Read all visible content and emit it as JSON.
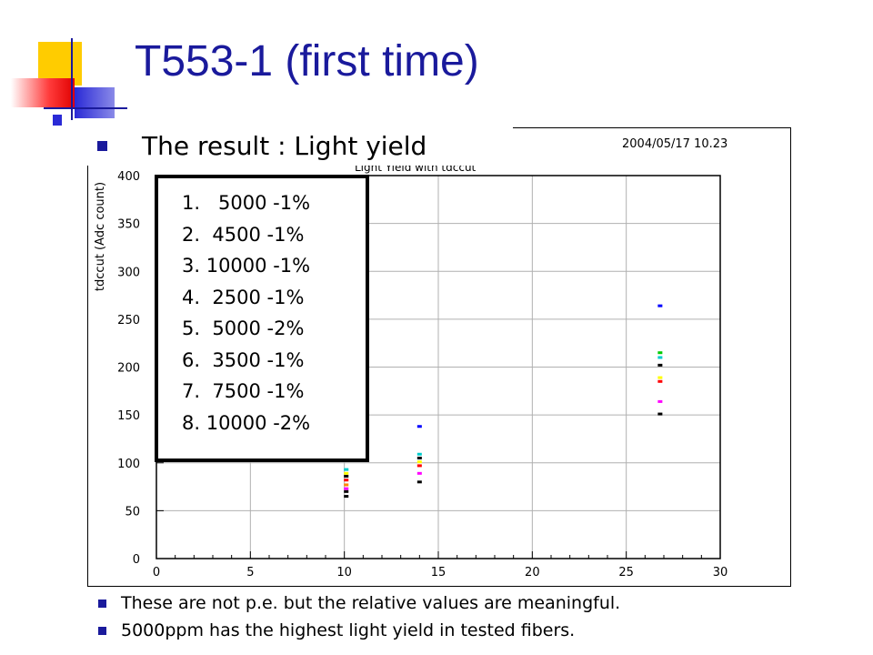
{
  "slide": {
    "title": "T553-1 (first time)",
    "heading": "The result : Light yield",
    "accent_color": "#1a1a9c",
    "notes": [
      "These are not p.e. but the relative values are meaningful.",
      "5000ppm has the highest light yield in tested fibers."
    ]
  },
  "plot": {
    "date_stamp": "2004/05/17   10.23",
    "partial_title": "Light Yield  with tdccut"
  },
  "legend": {
    "items": [
      "1.   5000 -1%",
      "2.  4500 -1%",
      "3. 10000 -1%",
      "4.  2500 -1%",
      "5.  5000 -2%",
      "6.  3500 -1%",
      "7.  7500 -1%",
      "8. 10000 -2%"
    ]
  },
  "chart_data": {
    "type": "scatter",
    "ylabel": "tdccut (Adc count)",
    "xlabel": "",
    "xlim": [
      0,
      30
    ],
    "ylim": [
      0,
      400
    ],
    "x_ticks": [
      0,
      5,
      10,
      15,
      20,
      25,
      30
    ],
    "y_ticks": [
      0,
      50,
      100,
      150,
      200,
      250,
      300,
      350,
      400
    ],
    "grid": true,
    "points": [
      {
        "x": 10.1,
        "y": 93,
        "color": "#00cccc"
      },
      {
        "x": 10.1,
        "y": 89,
        "color": "#ffff00"
      },
      {
        "x": 10.1,
        "y": 86,
        "color": "#000000"
      },
      {
        "x": 10.1,
        "y": 82,
        "color": "#ff0000"
      },
      {
        "x": 10.1,
        "y": 77,
        "color": "#ff8800"
      },
      {
        "x": 10.1,
        "y": 73,
        "color": "#ff00ff"
      },
      {
        "x": 10.1,
        "y": 70,
        "color": "#000000"
      },
      {
        "x": 10.1,
        "y": 65,
        "color": "#000000"
      },
      {
        "x": 14.0,
        "y": 138,
        "color": "#0000ff"
      },
      {
        "x": 14.0,
        "y": 109,
        "color": "#00cccc"
      },
      {
        "x": 14.0,
        "y": 105,
        "color": "#000000"
      },
      {
        "x": 14.0,
        "y": 101,
        "color": "#ffff00"
      },
      {
        "x": 14.0,
        "y": 97,
        "color": "#ff0000"
      },
      {
        "x": 14.0,
        "y": 89,
        "color": "#ff00ff"
      },
      {
        "x": 14.0,
        "y": 80,
        "color": "#000000"
      },
      {
        "x": 26.8,
        "y": 264,
        "color": "#0000ff"
      },
      {
        "x": 26.8,
        "y": 215,
        "color": "#00cc00"
      },
      {
        "x": 26.8,
        "y": 210,
        "color": "#00cccc"
      },
      {
        "x": 26.8,
        "y": 202,
        "color": "#000000"
      },
      {
        "x": 26.8,
        "y": 189,
        "color": "#ffff00"
      },
      {
        "x": 26.8,
        "y": 185,
        "color": "#ff0000"
      },
      {
        "x": 26.8,
        "y": 164,
        "color": "#ff00ff"
      },
      {
        "x": 26.8,
        "y": 151,
        "color": "#000000"
      }
    ]
  }
}
